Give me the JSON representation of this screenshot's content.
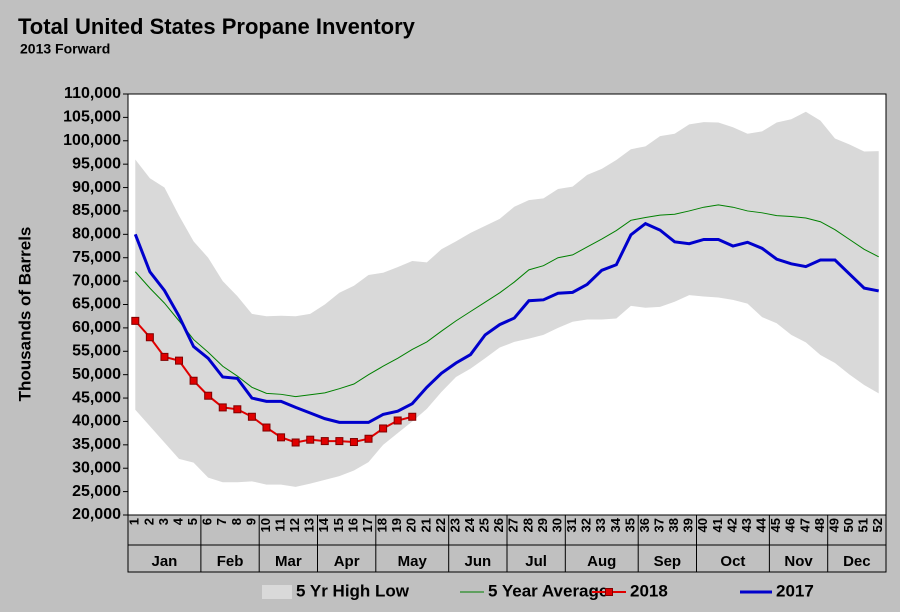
{
  "chart_data": {
    "type": "line",
    "title": "Total United States Propane Inventory",
    "subtitle": "2013 Forward",
    "y_label": "Thousands of Barrels",
    "categories": [
      "1",
      "2",
      "3",
      "4",
      "5",
      "6",
      "7",
      "8",
      "9",
      "10",
      "11",
      "12",
      "13",
      "14",
      "15",
      "16",
      "17",
      "18",
      "19",
      "20",
      "21",
      "22",
      "23",
      "24",
      "25",
      "26",
      "27",
      "28",
      "29",
      "30",
      "31",
      "32",
      "33",
      "34",
      "35",
      "36",
      "37",
      "38",
      "39",
      "40",
      "41",
      "42",
      "43",
      "44",
      "45",
      "46",
      "47",
      "48",
      "49",
      "50",
      "51",
      "52"
    ],
    "months": [
      {
        "label": "Jan",
        "weeks": [
          1,
          5
        ]
      },
      {
        "label": "Feb",
        "weeks": [
          6,
          9
        ]
      },
      {
        "label": "Mar",
        "weeks": [
          10,
          13
        ]
      },
      {
        "label": "Apr",
        "weeks": [
          14,
          17
        ]
      },
      {
        "label": "May",
        "weeks": [
          18,
          22
        ]
      },
      {
        "label": "Jun",
        "weeks": [
          23,
          26
        ]
      },
      {
        "label": "Jul",
        "weeks": [
          27,
          30
        ]
      },
      {
        "label": "Aug",
        "weeks": [
          31,
          35
        ]
      },
      {
        "label": "Sep",
        "weeks": [
          36,
          39
        ]
      },
      {
        "label": "Oct",
        "weeks": [
          40,
          44
        ]
      },
      {
        "label": "Nov",
        "weeks": [
          45,
          48
        ]
      },
      {
        "label": "Dec",
        "weeks": [
          49,
          52
        ]
      }
    ],
    "band": {
      "name": "5 Yr High Low",
      "color": "#d9d9d9",
      "high": [
        96000,
        92000,
        90000,
        84000,
        78500,
        75000,
        70000,
        66800,
        63000,
        62500,
        62600,
        62500,
        63000,
        65000,
        67500,
        69000,
        71300,
        71800,
        73000,
        74300,
        74000,
        76800,
        78500,
        80300,
        81800,
        83300,
        85900,
        87300,
        87700,
        89700,
        90200,
        92700,
        94000,
        95900,
        98200,
        98800,
        101000,
        101500,
        103500,
        104000,
        103900,
        102900,
        101500,
        102000,
        103900,
        104600,
        106200,
        104300,
        100500,
        99200,
        97700,
        97800
      ],
      "low": [
        42500,
        39000,
        35500,
        32000,
        31200,
        28000,
        27000,
        27000,
        27200,
        26500,
        26500,
        26000,
        26700,
        27500,
        28300,
        29500,
        31300,
        35000,
        37500,
        40000,
        42700,
        46300,
        49500,
        51300,
        53500,
        55800,
        57000,
        57700,
        58500,
        60000,
        61300,
        61800,
        61800,
        62000,
        64700,
        64300,
        64500,
        65600,
        67000,
        66700,
        66500,
        66000,
        65200,
        62300,
        61000,
        58500,
        56900,
        54200,
        52500,
        50000,
        47800,
        46000
      ]
    },
    "series": [
      {
        "name": "5 Year Average",
        "color": "#008000",
        "width": 1,
        "markers": false,
        "values": [
          72000,
          68500,
          65300,
          61500,
          57500,
          54800,
          51800,
          49700,
          47300,
          46000,
          45800,
          45300,
          45700,
          46100,
          47000,
          48000,
          50000,
          51800,
          53500,
          55400,
          57000,
          59300,
          61500,
          63500,
          65500,
          67500,
          69800,
          72400,
          73300,
          75000,
          75600,
          77300,
          79000,
          80800,
          83000,
          83600,
          84100,
          84300,
          85000,
          85800,
          86300,
          85800,
          85000,
          84600,
          84000,
          83800,
          83500,
          82700,
          81000,
          78900,
          76800,
          75200
        ]
      },
      {
        "name": "2018",
        "color": "#e00000",
        "width": 2,
        "markers": true,
        "values": [
          61500,
          58000,
          53800,
          53000,
          48700,
          45500,
          43000,
          42600,
          41000,
          38700,
          36600,
          35500,
          36100,
          35800,
          35800,
          35600,
          36300,
          38500,
          40200,
          41000,
          null,
          null,
          null,
          null,
          null,
          null,
          null,
          null,
          null,
          null,
          null,
          null,
          null,
          null,
          null,
          null,
          null,
          null,
          null,
          null,
          null,
          null,
          null,
          null,
          null,
          null,
          null,
          null,
          null,
          null,
          null,
          null
        ]
      },
      {
        "name": "2017",
        "color": "#0000cc",
        "width": 3,
        "markers": false,
        "values": [
          80000,
          72000,
          68000,
          62500,
          56000,
          53500,
          49500,
          49200,
          45000,
          44300,
          44300,
          43000,
          41800,
          40600,
          39800,
          39800,
          39800,
          41500,
          42200,
          43800,
          47300,
          50300,
          52500,
          54300,
          58500,
          60700,
          62100,
          65800,
          66000,
          67400,
          67600,
          69300,
          72300,
          73500,
          79900,
          82300,
          80900,
          78400,
          78000,
          78900,
          78900,
          77500,
          78300,
          77000,
          74700,
          73700,
          73100,
          74500,
          74500,
          71500,
          68500,
          67900
        ]
      }
    ],
    "ylim": [
      20000,
      110000
    ],
    "yticks": [
      {
        "value": 20000,
        "label": "20,000"
      },
      {
        "value": 25000,
        "label": "25,000"
      },
      {
        "value": 30000,
        "label": "30,000"
      },
      {
        "value": 35000,
        "label": "35,000"
      },
      {
        "value": 40000,
        "label": "40,000"
      },
      {
        "value": 45000,
        "label": "45,000"
      },
      {
        "value": 50000,
        "label": "50,000"
      },
      {
        "value": 55000,
        "label": "55,000"
      },
      {
        "value": 60000,
        "label": "60,000"
      },
      {
        "value": 65000,
        "label": "65,000"
      },
      {
        "value": 70000,
        "label": "70,000"
      },
      {
        "value": 75000,
        "label": "75,000"
      },
      {
        "value": 80000,
        "label": "80,000"
      },
      {
        "value": 85000,
        "label": "85,000"
      },
      {
        "value": 90000,
        "label": "90,000"
      },
      {
        "value": 95000,
        "label": "95,000"
      },
      {
        "value": 100000,
        "label": "100,000"
      },
      {
        "value": 105000,
        "label": "105,000"
      },
      {
        "value": 110000,
        "label": "110,000"
      }
    ],
    "grid": false
  }
}
